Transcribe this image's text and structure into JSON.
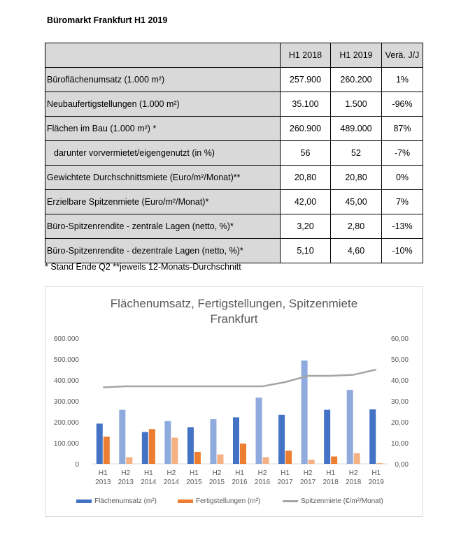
{
  "title": "Büromarkt Frankfurt H1 2019",
  "table": {
    "headers": [
      "",
      "H1 2018",
      "H1 2019",
      "Verä. J/J"
    ],
    "rows": [
      {
        "label": "Büroflächenumsatz (1.000 m²)",
        "v1": "257.900",
        "v2": "260.200",
        "chg": "1%"
      },
      {
        "label": "Neubaufertigstellungen (1.000 m²)",
        "v1": "35.100",
        "v2": "1.500",
        "chg": "-96%"
      },
      {
        "label": "Flächen im Bau (1.000 m²) *",
        "v1": "260.900",
        "v2": "489.000",
        "chg": "87%"
      },
      {
        "label": "darunter vorvermietet/eigengenutzt (in %)",
        "v1": "56",
        "v2": "52",
        "chg": "-7%"
      },
      {
        "label": "Gewichtete Durchschnittsmiete (Euro/m²/Monat)**",
        "v1": "20,80",
        "v2": "20,80",
        "chg": "0%"
      },
      {
        "label": "Erzielbare Spitzenmiete (Euro/m²/Monat)*",
        "v1": "42,00",
        "v2": "45,00",
        "chg": "7%"
      },
      {
        "label": "Büro-Spitzenrendite - zentrale Lagen (netto, %)*",
        "v1": "3,20",
        "v2": "2,80",
        "chg": "-13%"
      },
      {
        "label": "Büro-Spitzenrendite - dezentrale Lagen (netto, %)*",
        "v1": "5,10",
        "v2": "4,60",
        "chg": "-10%"
      }
    ]
  },
  "footnote": "* Stand Ende Q2 **jeweils 12-Monats-Durchschnitt",
  "chart_data": {
    "type": "bar",
    "title_line1": "Flächenumsatz, Fertigstellungen, Spitzenmiete",
    "title_line2": "Frankfurt",
    "categories": [
      [
        "H1",
        "2013"
      ],
      [
        "H2",
        "2013"
      ],
      [
        "H1",
        "2014"
      ],
      [
        "H2",
        "2014"
      ],
      [
        "H1",
        "2015"
      ],
      [
        "H2",
        "2015"
      ],
      [
        "H1",
        "2016"
      ],
      [
        "H2",
        "2016"
      ],
      [
        "H1",
        "2017"
      ],
      [
        "H2",
        "2017"
      ],
      [
        "H1",
        "2018"
      ],
      [
        "H2",
        "2018"
      ],
      [
        "H1",
        "2019"
      ]
    ],
    "yleft": {
      "min": 0,
      "max": 600000,
      "ticks": [
        "0",
        "100.000",
        "200.000",
        "300.000",
        "400.000",
        "500.000",
        "600.000"
      ]
    },
    "yright": {
      "min": 0,
      "max": 60,
      "ticks": [
        "0,00",
        "10,00",
        "20,00",
        "30,00",
        "40,00",
        "50,00",
        "60,00"
      ]
    },
    "series": [
      {
        "name": "Flächenumsatz (m²)",
        "axis": "left",
        "color_h1": "#4472c4",
        "color_h2": "#8faadc",
        "values": [
          192000,
          258000,
          152000,
          204000,
          175000,
          213000,
          222000,
          316000,
          234000,
          493000,
          258000,
          353000,
          260000
        ]
      },
      {
        "name": "Fertigstellungen (m²)",
        "axis": "left",
        "color_h1": "#ed7d31",
        "color_h2": "#f4b183",
        "values": [
          130000,
          32000,
          166000,
          125000,
          57000,
          45000,
          97000,
          32000,
          63000,
          20000,
          35000,
          51000,
          2000
        ]
      },
      {
        "name": "Spitzenmiete (€/m²/Monat)",
        "axis": "right",
        "type": "line",
        "color": "#a5a5a5",
        "values": [
          36.5,
          37,
          37,
          37,
          37,
          37,
          37,
          37,
          39,
          42,
          42,
          42.5,
          45
        ]
      }
    ],
    "legend_position": "bottom",
    "grid": false
  }
}
